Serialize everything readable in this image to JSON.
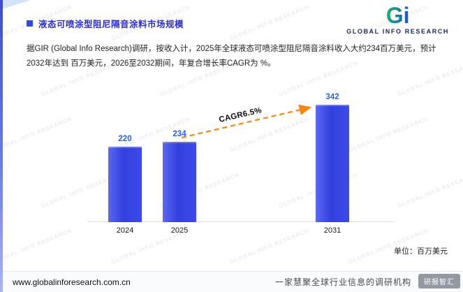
{
  "header": {
    "title": "液态可喷涂型阻尼隔音涂料市场规模",
    "logo": {
      "g": "G",
      "i": "i",
      "text": "GLOBAL INFO RESEARCH"
    }
  },
  "body": {
    "paragraph": "据GIR (Global Info Research)调研，按收入计，2025年全球液态可喷涂型阻尼隔音涂料收入大约234百万美元，预计2032年达到 百万美元，2026至2032期间，年复合增长率CAGR为 %。"
  },
  "chart_data": {
    "type": "bar",
    "title": "液态可喷涂型阻尼隔音涂料市场规模",
    "categories": [
      "2024",
      "2025",
      "2031"
    ],
    "values": [
      220,
      234,
      342
    ],
    "unit_label": "单位：百万美元",
    "annotation": "CAGR6.5%",
    "xlabel": "",
    "ylabel": "",
    "ylim": [
      0,
      400
    ],
    "grid": false,
    "legend": "none",
    "bar_color": "#3a46e6",
    "value_label_color": "#2563eb",
    "trend_line_color": "#f5870f"
  },
  "footer": {
    "url": "www.globalinforesearch.com.cn",
    "slogan": "一家慧聚全球行业信息的调研机构",
    "watermark_logo": "研报智汇"
  },
  "watermark": "GLOBAL INFO RESEARCH"
}
